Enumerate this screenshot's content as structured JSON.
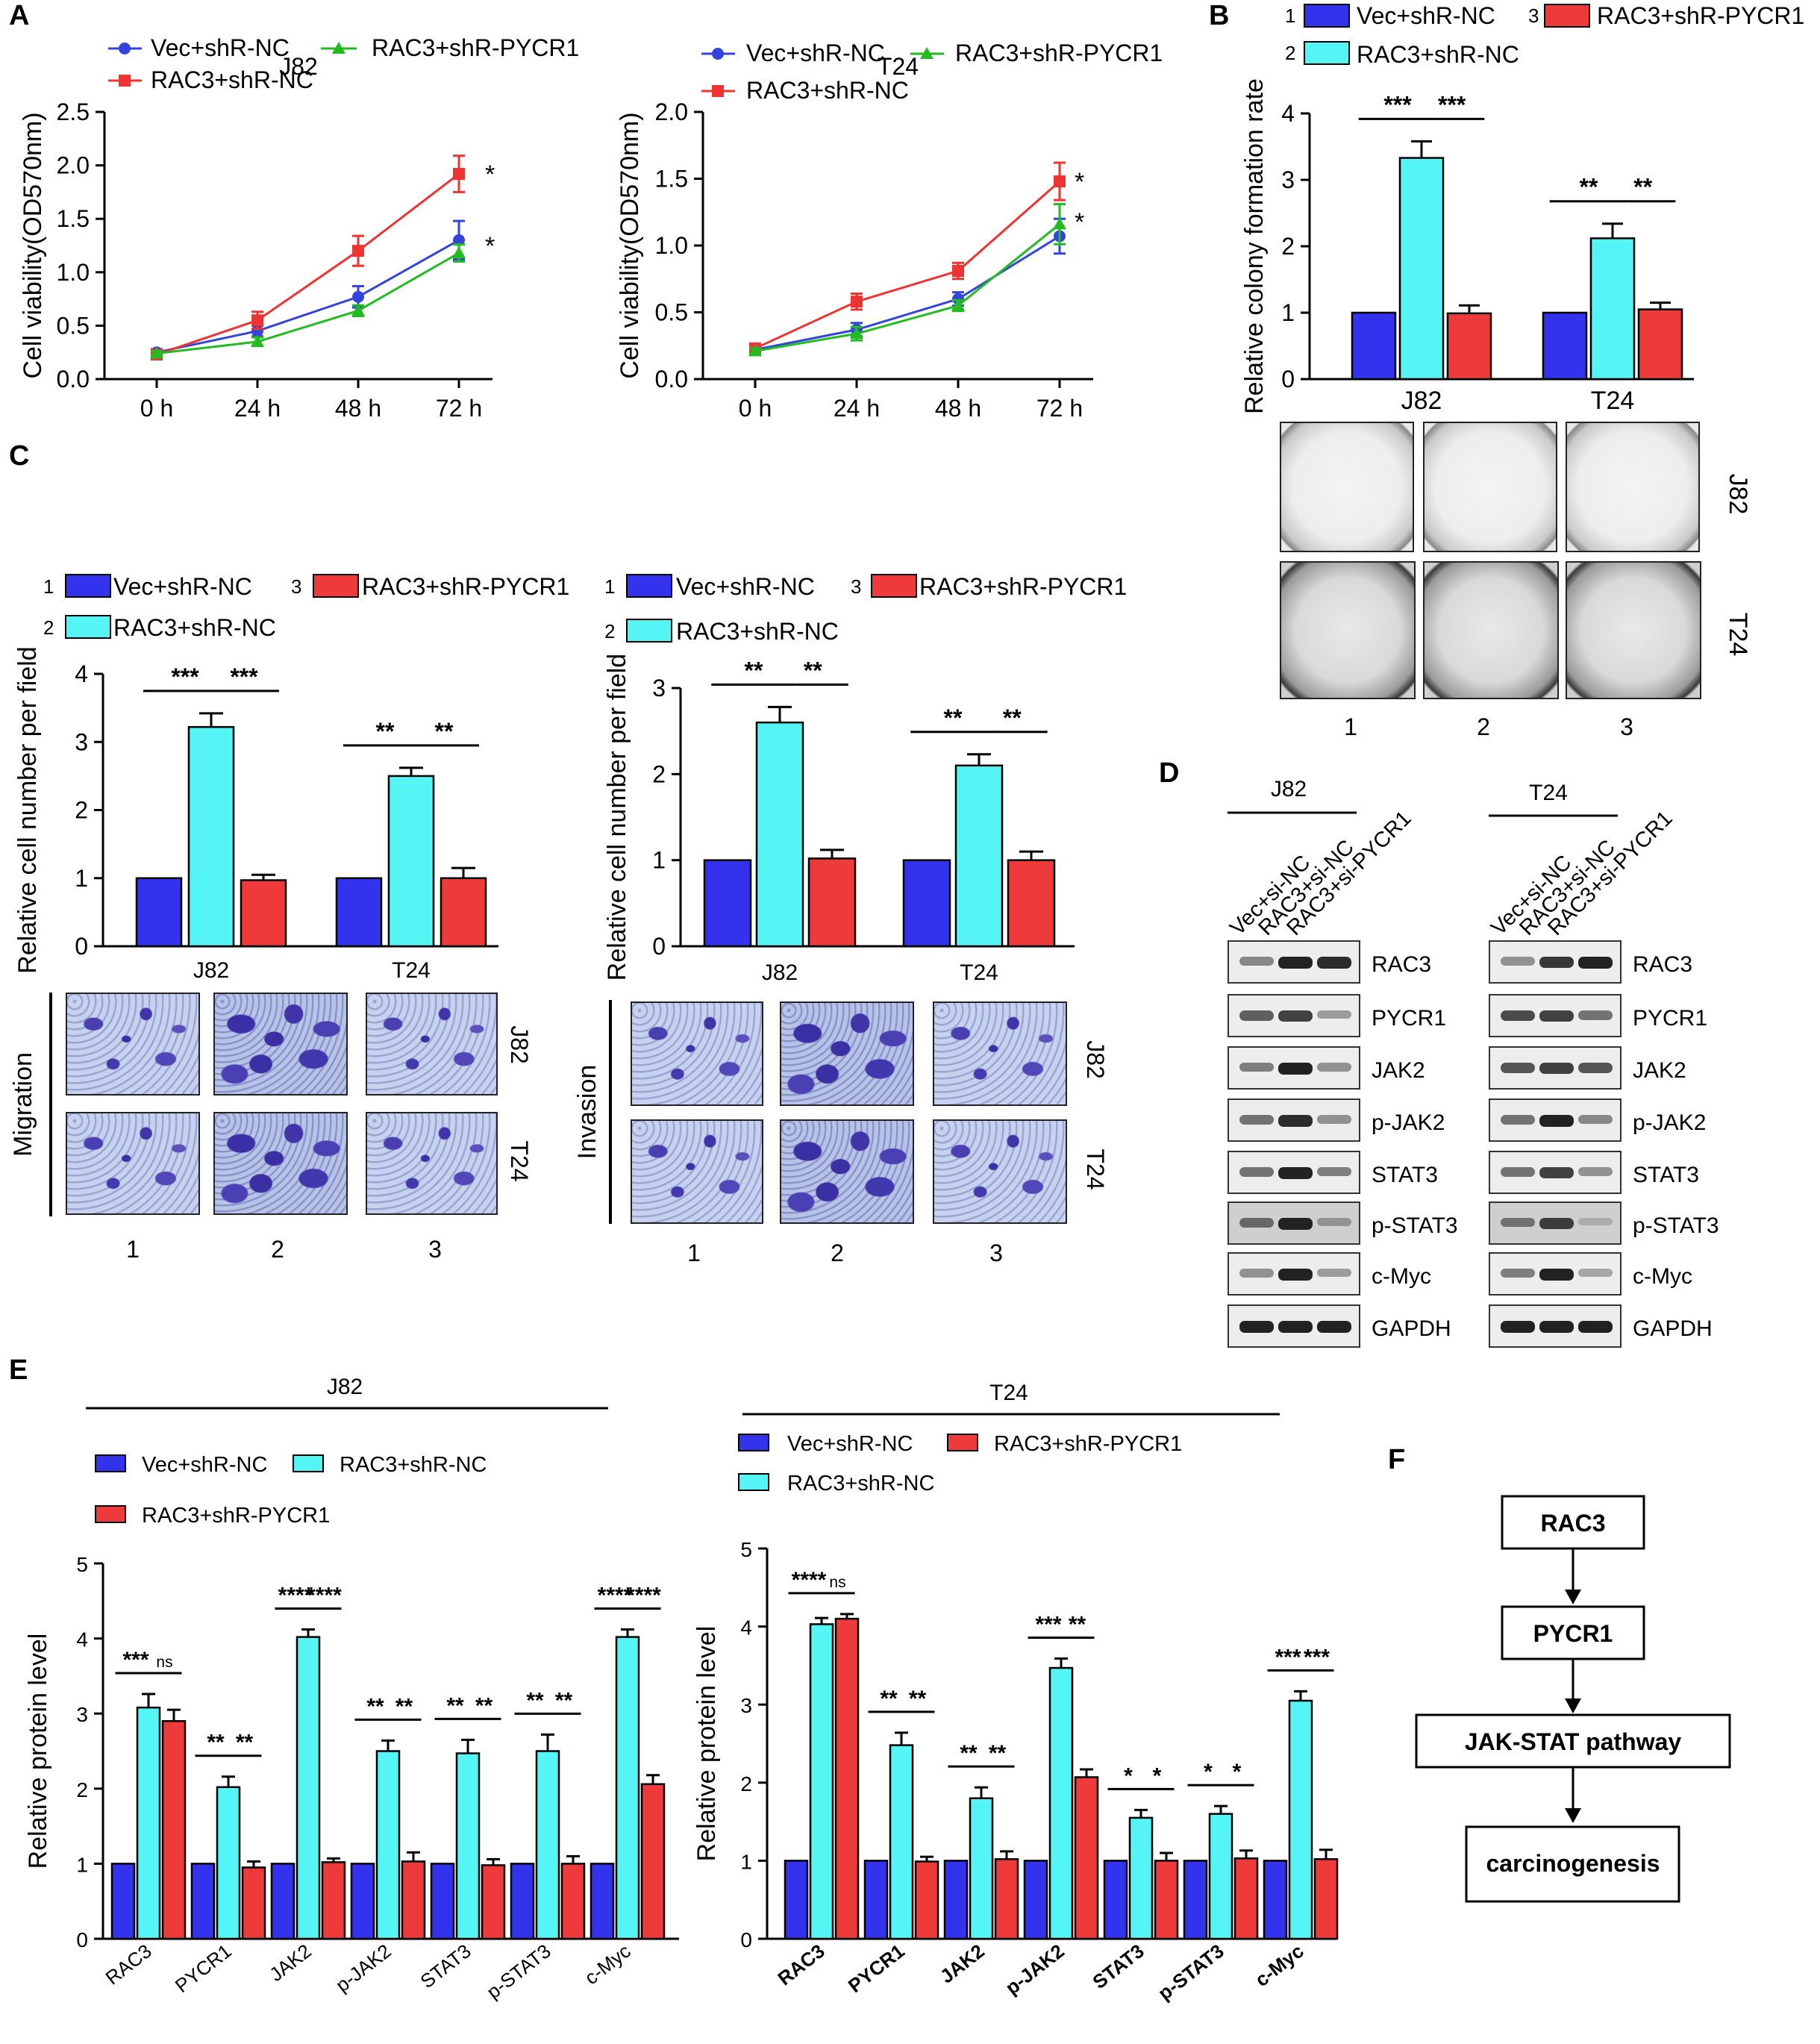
{
  "panels": {
    "a": "A",
    "b": "B",
    "c": "C",
    "d": "D",
    "e": "E",
    "f": "F"
  },
  "colors": {
    "blue": "#3333ee",
    "cyan": "#55f5f5",
    "red": "#ee3a3a",
    "green": "#22bb22",
    "lineblue": "#3344dd",
    "linered": "#ee3333"
  },
  "chart_data": [
    {
      "id": "A_J82",
      "type": "line",
      "title": "J82",
      "ylabel": "Cell viability(OD570nm)",
      "ylim": [
        0,
        2.5
      ],
      "yticks": [
        "0.0",
        "0.5",
        "1.0",
        "1.5",
        "2.0",
        "2.5"
      ],
      "categories": [
        "0 h",
        "24 h",
        "48 h",
        "72 h"
      ],
      "series": [
        {
          "name": "Vec+shR-NC",
          "values": [
            0.25,
            0.45,
            0.77,
            1.3
          ],
          "err": [
            0.03,
            0.05,
            0.1,
            0.18
          ]
        },
        {
          "name": "RAC3+shR-NC",
          "values": [
            0.23,
            0.55,
            1.2,
            1.92
          ],
          "err": [
            0.03,
            0.08,
            0.14,
            0.17
          ]
        },
        {
          "name": "RAC3+shR-PYCR1",
          "values": [
            0.24,
            0.35,
            0.64,
            1.18
          ],
          "err": [
            0.02,
            0.04,
            0.05,
            0.08
          ]
        }
      ],
      "annotations": [
        "*",
        "*"
      ]
    },
    {
      "id": "A_T24",
      "type": "line",
      "title": "T24",
      "ylabel": "Cell viability(OD570nm)",
      "ylim": [
        0,
        2.0
      ],
      "yticks": [
        "0.0",
        "0.5",
        "1.0",
        "1.5",
        "2.0"
      ],
      "categories": [
        "0 h",
        "24 h",
        "48 h",
        "72 h"
      ],
      "series": [
        {
          "name": "Vec+shR-NC",
          "values": [
            0.22,
            0.37,
            0.6,
            1.07
          ],
          "err": [
            0.03,
            0.05,
            0.05,
            0.13
          ]
        },
        {
          "name": "RAC3+shR-NC",
          "values": [
            0.23,
            0.58,
            0.81,
            1.48
          ],
          "err": [
            0.03,
            0.06,
            0.06,
            0.14
          ]
        },
        {
          "name": "RAC3+shR-PYCR1",
          "values": [
            0.21,
            0.34,
            0.55,
            1.16
          ],
          "err": [
            0.02,
            0.05,
            0.04,
            0.15
          ]
        }
      ],
      "annotations": [
        "*",
        "*"
      ]
    },
    {
      "id": "B",
      "type": "bar",
      "ylabel": "Relative colony formation rate",
      "ylim": [
        0,
        4
      ],
      "yticks": [
        "0",
        "1",
        "2",
        "3",
        "4"
      ],
      "categories": [
        "J82",
        "T24"
      ],
      "series": [
        {
          "name": "Vec+shR-NC",
          "values": [
            1,
            1
          ],
          "err": [
            0,
            0
          ]
        },
        {
          "name": "RAC3+shR-NC",
          "values": [
            3.33,
            2.12
          ],
          "err": [
            0.25,
            0.22
          ]
        },
        {
          "name": "RAC3+shR-PYCR1",
          "values": [
            0.99,
            1.05
          ],
          "err": [
            0.12,
            0.1
          ]
        }
      ],
      "sig": [
        [
          "***",
          "***"
        ],
        [
          "**",
          "**"
        ]
      ]
    },
    {
      "id": "C_mig",
      "type": "bar",
      "ylabel": "Relative cell number per field",
      "ylim": [
        0,
        4
      ],
      "yticks": [
        "0",
        "1",
        "2",
        "3",
        "4"
      ],
      "categories": [
        "J82",
        "T24"
      ],
      "series": [
        {
          "name": "Vec+shR-NC",
          "values": [
            1,
            1
          ],
          "err": [
            0,
            0
          ]
        },
        {
          "name": "RAC3+shR-NC",
          "values": [
            3.22,
            2.5
          ],
          "err": [
            0.2,
            0.12
          ]
        },
        {
          "name": "RAC3+shR-PYCR1",
          "values": [
            0.97,
            1.0
          ],
          "err": [
            0.08,
            0.15
          ]
        }
      ],
      "sig": [
        [
          "***",
          "***"
        ],
        [
          "**",
          "**"
        ]
      ]
    },
    {
      "id": "C_inv",
      "type": "bar",
      "ylabel": "Relative cell number per field",
      "ylim": [
        0,
        3
      ],
      "yticks": [
        "0",
        "1",
        "2",
        "3"
      ],
      "categories": [
        "J82",
        "T24"
      ],
      "series": [
        {
          "name": "Vec+shR-NC",
          "values": [
            1,
            1
          ],
          "err": [
            0,
            0
          ]
        },
        {
          "name": "RAC3+shR-NC",
          "values": [
            2.6,
            2.1
          ],
          "err": [
            0.18,
            0.13
          ]
        },
        {
          "name": "RAC3+shR-PYCR1",
          "values": [
            1.02,
            1.0
          ],
          "err": [
            0.1,
            0.1
          ]
        }
      ],
      "sig": [
        [
          "**",
          "**"
        ],
        [
          "**",
          "**"
        ]
      ]
    },
    {
      "id": "E_J82",
      "type": "bar",
      "title": "J82",
      "ylabel": "Relative protein level",
      "ylim": [
        0,
        5
      ],
      "yticks": [
        "0",
        "1",
        "2",
        "3",
        "4",
        "5"
      ],
      "categories": [
        "RAC3",
        "PYCR1",
        "JAK2",
        "p-JAK2",
        "STAT3",
        "p-STAT3",
        "c-Myc"
      ],
      "series": [
        {
          "name": "Vec+shR-NC",
          "values": [
            1,
            1,
            1,
            1,
            1,
            1,
            1
          ],
          "err": [
            0,
            0,
            0,
            0,
            0,
            0,
            0
          ]
        },
        {
          "name": "RAC3+shR-NC",
          "values": [
            3.08,
            2.02,
            4.02,
            2.5,
            2.47,
            2.5,
            4.02
          ],
          "err": [
            0.18,
            0.14,
            0.1,
            0.14,
            0.18,
            0.22,
            0.1
          ]
        },
        {
          "name": "RAC3+shR-PYCR1",
          "values": [
            2.9,
            0.95,
            1.02,
            1.03,
            0.98,
            1.0,
            2.06
          ],
          "err": [
            0.15,
            0.08,
            0.05,
            0.12,
            0.08,
            0.1,
            0.12
          ]
        }
      ],
      "sig": [
        [
          "***",
          "ns"
        ],
        [
          "**",
          "**"
        ],
        [
          "****",
          "****"
        ],
        [
          "**",
          "**"
        ],
        [
          "**",
          "**"
        ],
        [
          "**",
          "**"
        ],
        [
          "****",
          "****"
        ]
      ]
    },
    {
      "id": "E_T24",
      "type": "bar",
      "title": "T24",
      "ylabel": "Relative protein level",
      "ylim": [
        0,
        5
      ],
      "yticks": [
        "0",
        "1",
        "2",
        "3",
        "4",
        "5"
      ],
      "categories": [
        "RAC3",
        "PYCR1",
        "JAK2",
        "p-JAK2",
        "STAT3",
        "p-STAT3",
        "c-Myc"
      ],
      "series": [
        {
          "name": "Vec+shR-NC",
          "values": [
            1,
            1,
            1,
            1,
            1,
            1,
            1
          ],
          "err": [
            0,
            0,
            0,
            0,
            0,
            0,
            0
          ]
        },
        {
          "name": "RAC3+shR-NC",
          "values": [
            4.03,
            2.48,
            1.8,
            3.47,
            1.55,
            1.6,
            3.05
          ],
          "err": [
            0.08,
            0.16,
            0.14,
            0.12,
            0.1,
            0.1,
            0.12
          ]
        },
        {
          "name": "RAC3+shR-PYCR1",
          "values": [
            4.1,
            0.99,
            1.02,
            2.07,
            1.0,
            1.03,
            1.02
          ],
          "err": [
            0.06,
            0.06,
            0.1,
            0.1,
            0.1,
            0.1,
            0.12
          ]
        }
      ],
      "sig": [
        [
          "****",
          "ns"
        ],
        [
          "**",
          "**"
        ],
        [
          "**",
          "**"
        ],
        [
          "***",
          "**"
        ],
        [
          "*",
          "*"
        ],
        [
          "*",
          "*"
        ],
        [
          "***",
          "***"
        ]
      ]
    }
  ],
  "legendA": {
    "vec": "Vec+shR-NC",
    "rac3nc": "RAC3+shR-NC",
    "rac3pycr1": "RAC3+shR-PYCR1"
  },
  "legendNums": {
    "n1": "1",
    "n2": "2",
    "n3": "3"
  },
  "panelC": {
    "migration": "Migration",
    "invasion": "Invasion",
    "j82": "J82",
    "t24": "T24"
  },
  "panelB_rows": {
    "j82": "J82",
    "t24": "T24"
  },
  "panelD": {
    "j82": "J82",
    "t24": "T24",
    "lanes": [
      "Vec+si-NC",
      "RAC3+si-NC",
      "RAC3+si-PYCR1"
    ],
    "proteins": [
      "RAC3",
      "PYCR1",
      "JAK2",
      "p-JAK2",
      "STAT3",
      "p-STAT3",
      "c-Myc",
      "GAPDH"
    ]
  },
  "panelF": {
    "n1": "RAC3",
    "n2": "PYCR1",
    "n3": "JAK-STAT pathway",
    "n4": "carcinogenesis"
  }
}
